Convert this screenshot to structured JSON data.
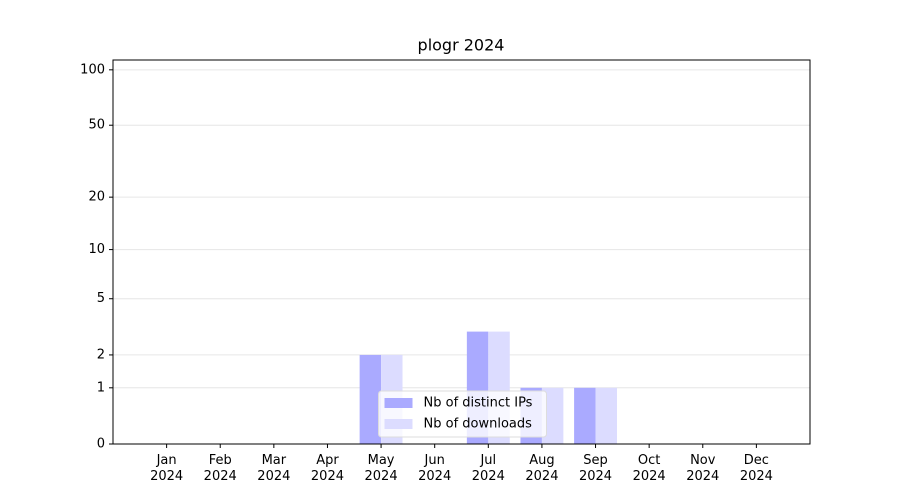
{
  "chart_data": {
    "type": "bar",
    "title": "plogr 2024",
    "categories": [
      "Jan\n2024",
      "Feb\n2024",
      "Mar\n2024",
      "Apr\n2024",
      "May\n2024",
      "Jun\n2024",
      "Jul\n2024",
      "Aug\n2024",
      "Sep\n2024",
      "Oct\n2024",
      "Nov\n2024",
      "Dec\n2024"
    ],
    "series": [
      {
        "name": "Nb of distinct IPs",
        "color": "#aaaaff",
        "values": [
          0,
          0,
          0,
          0,
          2,
          0,
          3,
          1,
          1,
          0,
          0,
          0
        ]
      },
      {
        "name": "Nb of downloads",
        "color": "#dcdcff",
        "values": [
          0,
          0,
          0,
          0,
          2,
          0,
          3,
          1,
          1,
          0,
          0,
          0
        ]
      }
    ],
    "yscale": "log1p",
    "ylim": [
      0,
      113
    ],
    "yticks": [
      0,
      1,
      2,
      5,
      10,
      20,
      50,
      100
    ],
    "grid": true,
    "legend": "lower center"
  }
}
